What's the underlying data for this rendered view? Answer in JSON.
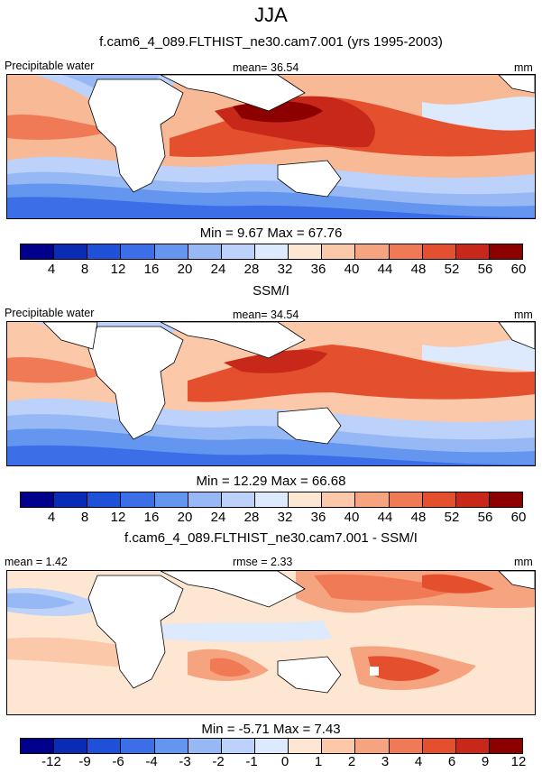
{
  "season": "JJA",
  "units": "mm",
  "panels": [
    {
      "title": "f.cam6_4_089.FLTHIST_ne30.cam7.001 (yrs 1995-2003)",
      "left_label": "Precipitable water",
      "stat_label": "mean=  36.54",
      "minmax": "Min =   9.67 Max =  67.76",
      "variable": "Precipitable water",
      "mean": 36.54,
      "min": 9.67,
      "max": 67.76
    },
    {
      "title": "SSM/I",
      "left_label": "Precipitable water",
      "stat_label": "mean=  34.54",
      "minmax": "Min =  12.29 Max =  66.68",
      "variable": "Precipitable water",
      "mean": 34.54,
      "min": 12.29,
      "max": 66.68
    },
    {
      "title": "f.cam6_4_089.FLTHIST_ne30.cam7.001 - SSM/I",
      "left_label": "mean =   1.42",
      "stat_label": "rmse =  2.33",
      "minmax": "Min =  -5.71 Max =   7.43",
      "mean": 1.42,
      "rmse": 2.33,
      "min": -5.71,
      "max": 7.43
    }
  ],
  "colorbar_levels": [
    "4",
    "8",
    "12",
    "16",
    "20",
    "24",
    "28",
    "32",
    "36",
    "40",
    "44",
    "48",
    "52",
    "56",
    "60"
  ],
  "diff_colorbar_levels": [
    "-12",
    "-9",
    "-6",
    "-4",
    "-3",
    "-2",
    "-1",
    "0",
    "1",
    "2",
    "3",
    "4",
    "6",
    "9",
    "12"
  ],
  "colors": [
    "#00008c",
    "#0a2cb4",
    "#1e50d8",
    "#3c6ee8",
    "#6496f0",
    "#96b9f6",
    "#bcd2fa",
    "#dde9fc",
    "#fde6d2",
    "#fbc8aa",
    "#f6a37f",
    "#f07a55",
    "#e4502e",
    "#c8281a",
    "#8c0000"
  ]
}
